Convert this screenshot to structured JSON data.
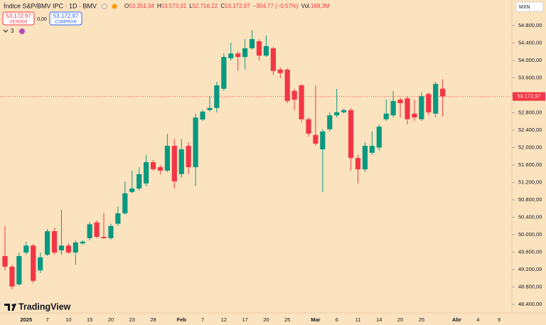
{
  "header": {
    "symbol": "Índice S&P/BMV IPC · 1D · BMV",
    "ohlc": [
      {
        "key": "O",
        "value": "53.351,34"
      },
      {
        "key": "H",
        "value": "53.573,31"
      },
      {
        "key": "L",
        "value": "52.716,22"
      },
      {
        "key": "C",
        "value": "53.172,97"
      }
    ],
    "change": "−304,77 (−0,57%)",
    "volume_key": "Vol.",
    "volume": "168,3M"
  },
  "trade": {
    "sell_price": "53.172,97",
    "sell": "VENDER",
    "spread": "0,00",
    "buy_price": "53.172,97",
    "buy": "COMPRAR"
  },
  "indicators_count": "3",
  "currency": "MXN",
  "brand": "TradingView",
  "chart_data": {
    "type": "candlestick",
    "categories": [
      null,
      null,
      null,
      "2025",
      null,
      null,
      "7",
      null,
      null,
      "10",
      null,
      null,
      "15",
      null,
      null,
      "20",
      null,
      null,
      "23",
      null,
      null,
      "28",
      null,
      null,
      null,
      "Feb",
      null,
      null,
      "7",
      null,
      null,
      "12",
      null,
      null,
      "17",
      null,
      null,
      "20",
      null,
      null,
      "25",
      null,
      null,
      null,
      "Mar",
      null,
      null,
      "6",
      null,
      null,
      "11",
      null,
      null,
      "14",
      null,
      null,
      "20",
      null,
      null,
      "25",
      null,
      null,
      null,
      null,
      "Abr",
      null,
      null,
      "4",
      null,
      null,
      "9"
    ],
    "open": [
      49510,
      49265,
      48860,
      49590,
      49750,
      49180,
      49540,
      50080,
      49640,
      49750,
      49590,
      49800,
      49920,
      50280,
      49950,
      49920,
      50250,
      50490,
      50980,
      51060,
      51175,
      51665,
      51550,
      51470,
      52040,
      51390,
      52040,
      51550,
      52645,
      52860,
      52910,
      53350,
      54050,
      54160,
      54080,
      54280,
      54440,
      54110,
      54280,
      53790,
      53790,
      53300,
      53430,
      52650,
      52290,
      51960,
      52420,
      52740,
      52810,
      52860,
      51760,
      51500,
      51880,
      52000,
      52650,
      52740,
      53100,
      53130,
      52780,
      52650,
      53230,
      52780,
      53351.34,
      null,
      null,
      null,
      null,
      null,
      null,
      null,
      null
    ],
    "high": [
      50200,
      49310,
      49590,
      49840,
      49790,
      49590,
      50130,
      50160,
      50570,
      49800,
      49870,
      49870,
      50290,
      50330,
      50490,
      50250,
      50650,
      51220,
      51470,
      51550,
      51830,
      51715,
      51600,
      52320,
      52200,
      52200,
      52120,
      52775,
      52860,
      53185,
      53510,
      54160,
      54410,
      54210,
      54490,
      54700,
      54490,
      54570,
      54310,
      53840,
      53820,
      53350,
      53460,
      52690,
      53430,
      52420,
      52810,
      53350,
      52890,
      52910,
      51830,
      52120,
      52370,
      52530,
      53100,
      53300,
      53150,
      53180,
      53100,
      53265,
      53265,
      53510,
      53573.31,
      null,
      null,
      null,
      null,
      null,
      null,
      null,
      null
    ],
    "low": [
      49180,
      48745,
      48830,
      49540,
      48890,
      49120,
      49510,
      49540,
      49540,
      49560,
      49310,
      49770,
      49870,
      49920,
      49900,
      49890,
      50200,
      50460,
      50950,
      51010,
      51110,
      51470,
      51390,
      51440,
      51060,
      51310,
      51390,
      51110,
      52610,
      52825,
      52810,
      53300,
      54000,
      53760,
      53790,
      54250,
      54000,
      54080,
      53670,
      53590,
      53020,
      52860,
      52580,
      52250,
      52040,
      50980,
      52370,
      52690,
      52780,
      51470,
      51180,
      51440,
      51830,
      51930,
      52610,
      52690,
      52690,
      52530,
      52610,
      52610,
      52740,
      52690,
      52716.22,
      null,
      null,
      null,
      null,
      null,
      null,
      null,
      null
    ],
    "close": [
      49265,
      48810,
      49510,
      49750,
      48940,
      49480,
      50080,
      49590,
      49750,
      49590,
      49820,
      49840,
      50240,
      49950,
      49920,
      50200,
      50490,
      50950,
      51060,
      51390,
      51665,
      51500,
      51470,
      52040,
      51225,
      51960,
      51550,
      52690,
      52825,
      52910,
      53430,
      54080,
      54160,
      54080,
      54280,
      54490,
      54110,
      54330,
      53760,
      53710,
      53070,
      53100,
      52650,
      52320,
      52090,
      52370,
      52740,
      52810,
      52860,
      51760,
      51500,
      52040,
      52040,
      52480,
      52780,
      53070,
      53020,
      52650,
      52690,
      53180,
      52810,
      53460,
      53172.97,
      null,
      null,
      null,
      null,
      null,
      null,
      null,
      null
    ],
    "up_color": "#089981",
    "down_color": "#f23645",
    "ylim": [
      48204,
      55388
    ],
    "yticks": [
      {
        "value": 48400,
        "label": "48.400,00"
      },
      {
        "value": 48800,
        "label": "48.800,00"
      },
      {
        "value": 49200,
        "label": "49.200,00"
      },
      {
        "value": 49600,
        "label": "49.600,00"
      },
      {
        "value": 50000,
        "label": "50.000,00"
      },
      {
        "value": 50400,
        "label": "50.400,00"
      },
      {
        "value": 50800,
        "label": "50.800,00"
      },
      {
        "value": 51200,
        "label": "51.200,00"
      },
      {
        "value": 51600,
        "label": "51.600,00"
      },
      {
        "value": 52000,
        "label": "52.000,00"
      },
      {
        "value": 52400,
        "label": "52.400,00"
      },
      {
        "value": 52800,
        "label": "52.800,00"
      },
      {
        "value": 53200,
        "label": "53.200,00"
      },
      {
        "value": 53600,
        "label": "53.600,00"
      },
      {
        "value": 54000,
        "label": "54.000,00"
      },
      {
        "value": 54400,
        "label": "54.400,00"
      },
      {
        "value": 54800,
        "label": "54.800,00"
      }
    ],
    "last_price": {
      "value": 53172.97,
      "label": "53.172,97"
    }
  }
}
